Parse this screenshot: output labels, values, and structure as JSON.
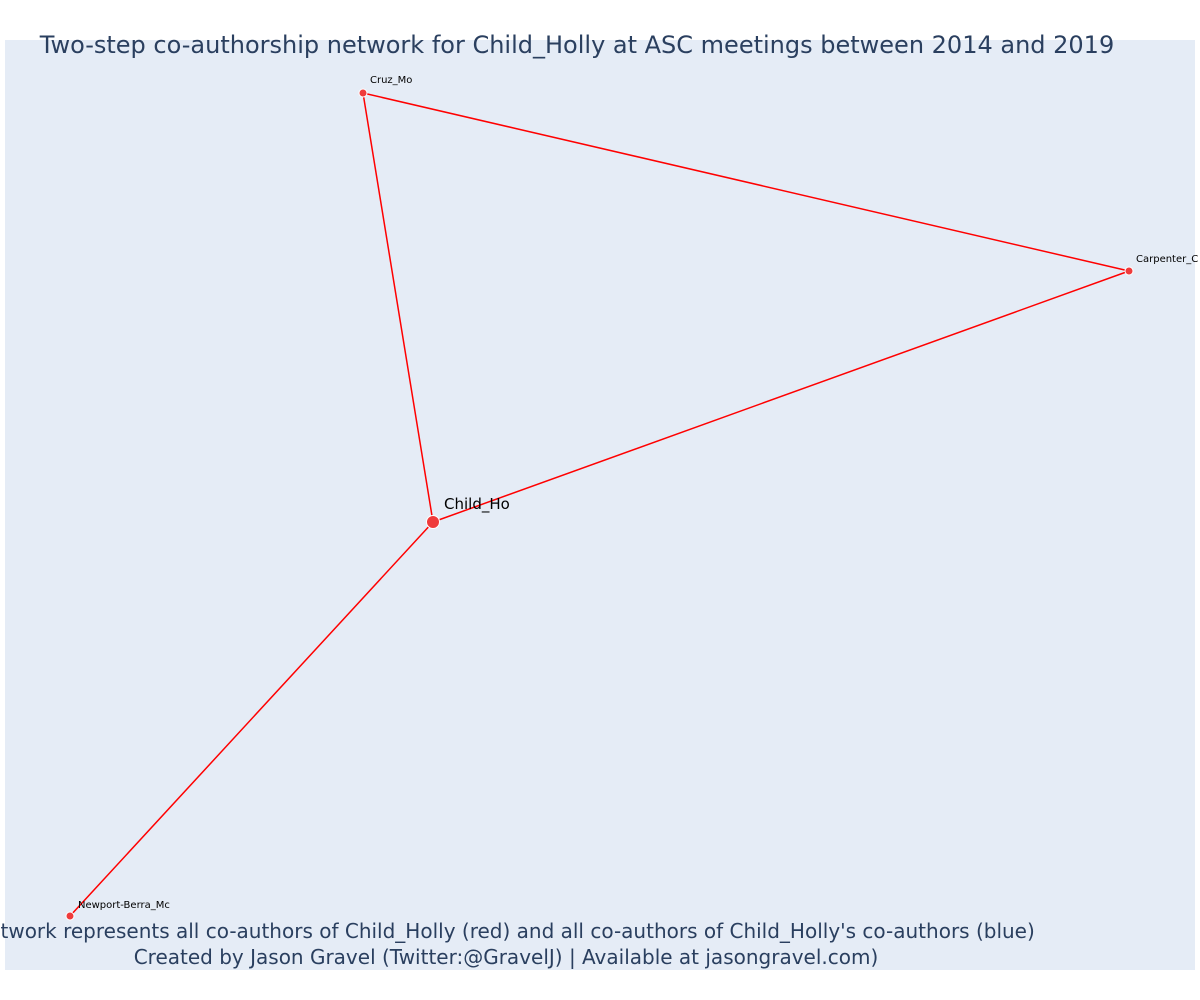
{
  "title": "Two-step co-authorship network for Child_Holly at ASC meetings between 2014 and 2019",
  "annotation": {
    "line1": "Network represents all co-authors of Child_Holly (red) and all co-authors of Child_Holly's co-authors (blue)",
    "line2": "Created by Jason Gravel (Twitter:@GravelJ) | Available at jasongravel.com)"
  },
  "colors": {
    "plot_background": "#e5ecf6",
    "edge": "#ff0000",
    "node_fill": "#ef3b3b",
    "node_outline": "#ffffff",
    "text": "#2a3f5f"
  },
  "network": {
    "center": "Child_Ho",
    "nodes": [
      {
        "id": "child",
        "label": "Child_Ho",
        "role": "center"
      },
      {
        "id": "cruz",
        "label": "Cruz_Mo",
        "role": "coauthor"
      },
      {
        "id": "carpenter",
        "label": "Carpenter_C",
        "role": "coauthor"
      },
      {
        "id": "newport",
        "label": "Newport-Berra_Mc",
        "role": "coauthor"
      }
    ],
    "edges": [
      {
        "source": "cruz",
        "target": "carpenter"
      },
      {
        "source": "cruz",
        "target": "child"
      },
      {
        "source": "carpenter",
        "target": "child"
      },
      {
        "source": "child",
        "target": "newport"
      }
    ]
  }
}
